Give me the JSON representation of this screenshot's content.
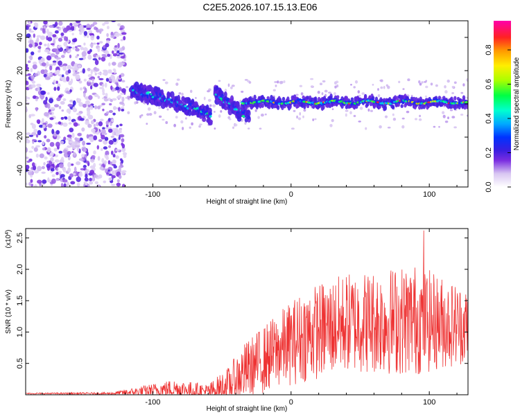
{
  "title": "C2E5.2026.107.15.13.E06",
  "chart_data": [
    {
      "type": "heatmap",
      "name": "spectrogram",
      "xlabel": "Height of straight line (km)",
      "ylabel": "Frequency (Hz)",
      "xlim": [
        -192,
        128
      ],
      "ylim": [
        -50,
        50
      ],
      "xticks": [
        -100,
        0,
        100
      ],
      "yticks": [
        -40,
        -20,
        0,
        20,
        40
      ],
      "colorbar": {
        "label": "Normalized spectral amplitude",
        "range": [
          0,
          0.97
        ],
        "ticks": [
          0.0,
          0.2,
          0.4,
          0.6,
          0.8
        ]
      },
      "features": {
        "noise_region_x": [
          -192,
          -120
        ],
        "descending_track": [
          [
            -115,
            8
          ],
          [
            -95,
            4
          ],
          [
            -80,
            0
          ],
          [
            -65,
            -4
          ],
          [
            -58,
            -8
          ]
        ],
        "branch_track": [
          [
            -55,
            6
          ],
          [
            -45,
            0
          ],
          [
            -35,
            -6
          ],
          [
            -30,
            -8
          ]
        ],
        "stable_track_freq": 1,
        "stable_track_x": [
          -35,
          128
        ]
      }
    },
    {
      "type": "line",
      "name": "snr",
      "xlabel": "Height of straight line (km)",
      "ylabel": "SNR (10 * v/v)",
      "exponent_label": "(x10",
      "exponent_value": "4",
      "exponent_close": ")",
      "xlim": [
        -192,
        128
      ],
      "ylim": [
        0,
        2.65
      ],
      "xticks": [
        -100,
        0,
        100
      ],
      "yticks": [
        0.5,
        1.0,
        1.5,
        2.0,
        2.5
      ],
      "ytick_labels": [
        "0.5",
        "1.0",
        "1.5",
        "2.0",
        "2.5"
      ],
      "color": "#ee3333",
      "envelope": [
        {
          "x": -192,
          "base": 0.02,
          "amp": 0.01
        },
        {
          "x": -130,
          "base": 0.02,
          "amp": 0.02
        },
        {
          "x": -110,
          "base": 0.05,
          "amp": 0.08
        },
        {
          "x": -85,
          "base": 0.1,
          "amp": 0.15
        },
        {
          "x": -60,
          "base": 0.05,
          "amp": 0.12
        },
        {
          "x": -45,
          "base": 0.15,
          "amp": 0.3
        },
        {
          "x": -35,
          "base": 0.35,
          "amp": 0.45
        },
        {
          "x": -10,
          "base": 0.7,
          "amp": 0.6
        },
        {
          "x": 10,
          "base": 0.95,
          "amp": 0.75
        },
        {
          "x": 40,
          "base": 1.15,
          "amp": 0.8
        },
        {
          "x": 90,
          "base": 1.2,
          "amp": 0.9
        },
        {
          "x": 128,
          "base": 1.1,
          "amp": 0.6
        }
      ],
      "peak": {
        "x": 96,
        "y": 2.62
      }
    }
  ]
}
